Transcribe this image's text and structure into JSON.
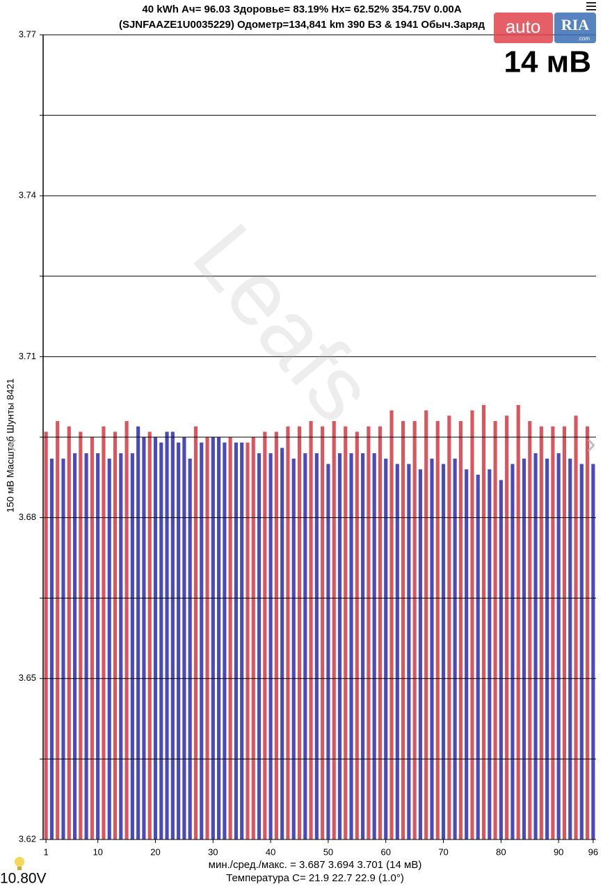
{
  "chart_data": {
    "type": "bar",
    "header_line1": "40 kWh  Ач= 96.03  Здоровье= 83.19%   Hx= 62.52%   354.75V 0.00A",
    "header_line2": "(SJNFAAZE1U0035229) Одометр=134,841 km  390 БЗ & 1941 Обыч.Заряд",
    "delta": "14 мВ",
    "ylabel": "150 мВ Масштаб  Шунты 8421",
    "stats": "мин./сред./макс. = 3.687 3.694 3.701  (14 мВ)",
    "temperature": "Температура C= 21.9  22.7  22.9  (1.0°)",
    "battery_12v": "10.80V",
    "watermark": "Leafs",
    "logo_left": "auto",
    "logo_right": "RIA",
    "logo_domain": ".com",
    "x": [
      1,
      2,
      3,
      4,
      5,
      6,
      7,
      8,
      9,
      10,
      11,
      12,
      13,
      14,
      15,
      16,
      17,
      18,
      19,
      20,
      21,
      22,
      23,
      24,
      25,
      26,
      27,
      28,
      29,
      30,
      31,
      32,
      33,
      34,
      35,
      36,
      37,
      38,
      39,
      40,
      41,
      42,
      43,
      44,
      45,
      46,
      47,
      48,
      49,
      50,
      51,
      52,
      53,
      54,
      55,
      56,
      57,
      58,
      59,
      60,
      61,
      62,
      63,
      64,
      65,
      66,
      67,
      68,
      69,
      70,
      71,
      72,
      73,
      74,
      75,
      76,
      77,
      78,
      79,
      80,
      81,
      82,
      83,
      84,
      85,
      86,
      87,
      88,
      89,
      90,
      91,
      92,
      93,
      94,
      95,
      96
    ],
    "values": [
      3.696,
      3.691,
      3.698,
      3.691,
      3.697,
      3.692,
      3.696,
      3.692,
      3.695,
      3.692,
      3.697,
      3.691,
      3.696,
      3.692,
      3.698,
      3.692,
      3.697,
      3.695,
      3.696,
      3.695,
      3.694,
      3.696,
      3.696,
      3.694,
      3.695,
      3.691,
      3.697,
      3.694,
      3.695,
      3.695,
      3.695,
      3.694,
      3.695,
      3.694,
      3.694,
      3.694,
      3.695,
      3.692,
      3.696,
      3.692,
      3.696,
      3.693,
      3.697,
      3.691,
      3.697,
      3.692,
      3.698,
      3.692,
      3.697,
      3.69,
      3.698,
      3.692,
      3.697,
      3.692,
      3.696,
      3.692,
      3.697,
      3.692,
      3.697,
      3.691,
      3.7,
      3.69,
      3.698,
      3.69,
      3.698,
      3.689,
      3.7,
      3.691,
      3.698,
      3.69,
      3.699,
      3.691,
      3.698,
      3.689,
      3.7,
      3.688,
      3.701,
      3.689,
      3.698,
      3.687,
      3.699,
      3.69,
      3.701,
      3.691,
      3.698,
      3.692,
      3.697,
      3.691,
      3.697,
      3.692,
      3.697,
      3.691,
      3.699,
      3.69,
      3.697,
      3.69
    ],
    "colors": [
      "#d9565f",
      "#4a4ab8",
      "#d9565f",
      "#4a4ab8",
      "#d9565f",
      "#4a4ab8",
      "#d9565f",
      "#4a4ab8",
      "#d9565f",
      "#4a4ab8",
      "#d9565f",
      "#4a4ab8",
      "#d9565f",
      "#4a4ab8",
      "#d9565f",
      "#4a4ab8",
      "#4a4ab8",
      "#4a4ab8",
      "#d9565f",
      "#4a4ab8",
      "#4a4ab8",
      "#4a4ab8",
      "#4a4ab8",
      "#4a4ab8",
      "#4a4ab8",
      "#4a4ab8",
      "#d9565f",
      "#4a4ab8",
      "#d9565f",
      "#4a4ab8",
      "#4a4ab8",
      "#4a4ab8",
      "#d9565f",
      "#4a4ab8",
      "#4a4ab8",
      "#d9565f",
      "#d9565f",
      "#4a4ab8",
      "#d9565f",
      "#4a4ab8",
      "#d9565f",
      "#4a4ab8",
      "#d9565f",
      "#4a4ab8",
      "#d9565f",
      "#4a4ab8",
      "#d9565f",
      "#4a4ab8",
      "#d9565f",
      "#4a4ab8",
      "#d9565f",
      "#4a4ab8",
      "#d9565f",
      "#4a4ab8",
      "#d9565f",
      "#4a4ab8",
      "#d9565f",
      "#4a4ab8",
      "#d9565f",
      "#4a4ab8",
      "#d9565f",
      "#4a4ab8",
      "#d9565f",
      "#4a4ab8",
      "#d9565f",
      "#4a4ab8",
      "#d9565f",
      "#4a4ab8",
      "#d9565f",
      "#4a4ab8",
      "#d9565f",
      "#4a4ab8",
      "#d9565f",
      "#4a4ab8",
      "#d9565f",
      "#4a4ab8",
      "#d9565f",
      "#4a4ab8",
      "#d9565f",
      "#4a4ab8",
      "#d9565f",
      "#4a4ab8",
      "#d9565f",
      "#4a4ab8",
      "#d9565f",
      "#4a4ab8",
      "#d9565f",
      "#4a4ab8",
      "#d9565f",
      "#4a4ab8",
      "#d9565f",
      "#4a4ab8",
      "#d9565f",
      "#4a4ab8",
      "#d9565f",
      "#4a4ab8"
    ],
    "xlim": [
      0.5,
      96.5
    ],
    "xticks": [
      1,
      10,
      20,
      30,
      40,
      50,
      60,
      70,
      80,
      90,
      96
    ],
    "ylim": [
      3.62,
      3.77
    ],
    "yticks": [
      3.62,
      3.65,
      3.68,
      3.71,
      3.74,
      3.77
    ],
    "minor_grid": [
      3.635,
      3.665,
      3.695,
      3.725,
      3.755
    ],
    "grid": true
  }
}
